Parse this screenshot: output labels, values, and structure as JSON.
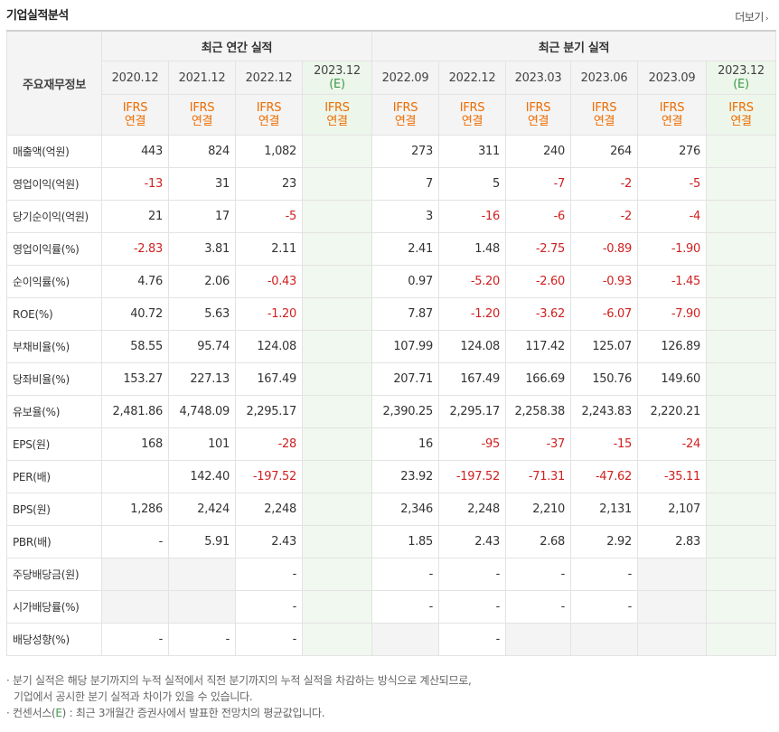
{
  "header": {
    "title": "기업실적분석",
    "more_label": "더보기",
    "more_arrow": "›"
  },
  "table": {
    "rowhead_label": "주요재무정보",
    "group_annual": "최근 연간 실적",
    "group_quarter": "최근 분기 실적",
    "periods": [
      {
        "label": "2020.12",
        "sub": "",
        "basis1": "IFRS",
        "basis2": "연결",
        "estimate": false
      },
      {
        "label": "2021.12",
        "sub": "",
        "basis1": "IFRS",
        "basis2": "연결",
        "estimate": false
      },
      {
        "label": "2022.12",
        "sub": "",
        "basis1": "IFRS",
        "basis2": "연결",
        "estimate": false
      },
      {
        "label": "2023.12",
        "sub": "(E)",
        "basis1": "IFRS",
        "basis2": "연결",
        "estimate": true
      },
      {
        "label": "2022.09",
        "sub": "",
        "basis1": "IFRS",
        "basis2": "연결",
        "estimate": false
      },
      {
        "label": "2022.12",
        "sub": "",
        "basis1": "IFRS",
        "basis2": "연결",
        "estimate": false
      },
      {
        "label": "2023.03",
        "sub": "",
        "basis1": "IFRS",
        "basis2": "연결",
        "estimate": false
      },
      {
        "label": "2023.06",
        "sub": "",
        "basis1": "IFRS",
        "basis2": "연결",
        "estimate": false
      },
      {
        "label": "2023.09",
        "sub": "",
        "basis1": "IFRS",
        "basis2": "연결",
        "estimate": false
      },
      {
        "label": "2023.12",
        "sub": "(E)",
        "basis1": "IFRS",
        "basis2": "연결",
        "estimate": true
      }
    ],
    "rows": [
      {
        "label": "매출액(억원)",
        "values": [
          "443",
          "824",
          "1,082",
          "",
          "273",
          "311",
          "240",
          "264",
          "276",
          ""
        ]
      },
      {
        "label": "영업이익(억원)",
        "values": [
          "-13",
          "31",
          "23",
          "",
          "7",
          "5",
          "-7",
          "-2",
          "-5",
          ""
        ]
      },
      {
        "label": "당기순이익(억원)",
        "values": [
          "21",
          "17",
          "-5",
          "",
          "3",
          "-16",
          "-6",
          "-2",
          "-4",
          ""
        ]
      },
      {
        "label": "영업이익률(%)",
        "values": [
          "-2.83",
          "3.81",
          "2.11",
          "",
          "2.41",
          "1.48",
          "-2.75",
          "-0.89",
          "-1.90",
          ""
        ]
      },
      {
        "label": "순이익률(%)",
        "values": [
          "4.76",
          "2.06",
          "-0.43",
          "",
          "0.97",
          "-5.20",
          "-2.60",
          "-0.93",
          "-1.45",
          ""
        ]
      },
      {
        "label": "ROE(%)",
        "values": [
          "40.72",
          "5.63",
          "-1.20",
          "",
          "7.87",
          "-1.20",
          "-3.62",
          "-6.07",
          "-7.90",
          ""
        ]
      },
      {
        "label": "부채비율(%)",
        "values": [
          "58.55",
          "95.74",
          "124.08",
          "",
          "107.99",
          "124.08",
          "117.42",
          "125.07",
          "126.89",
          ""
        ]
      },
      {
        "label": "당좌비율(%)",
        "values": [
          "153.27",
          "227.13",
          "167.49",
          "",
          "207.71",
          "167.49",
          "166.69",
          "150.76",
          "149.60",
          ""
        ]
      },
      {
        "label": "유보율(%)",
        "values": [
          "2,481.86",
          "4,748.09",
          "2,295.17",
          "",
          "2,390.25",
          "2,295.17",
          "2,258.38",
          "2,243.83",
          "2,220.21",
          ""
        ]
      },
      {
        "label": "EPS(원)",
        "values": [
          "168",
          "101",
          "-28",
          "",
          "16",
          "-95",
          "-37",
          "-15",
          "-24",
          ""
        ]
      },
      {
        "label": "PER(배)",
        "values": [
          "",
          "142.40",
          "-197.52",
          "",
          "23.92",
          "-197.52",
          "-71.31",
          "-47.62",
          "-35.11",
          ""
        ]
      },
      {
        "label": "BPS(원)",
        "values": [
          "1,286",
          "2,424",
          "2,248",
          "",
          "2,346",
          "2,248",
          "2,210",
          "2,131",
          "2,107",
          ""
        ]
      },
      {
        "label": "PBR(배)",
        "values": [
          "-",
          "5.91",
          "2.43",
          "",
          "1.85",
          "2.43",
          "2.68",
          "2.92",
          "2.83",
          ""
        ]
      },
      {
        "label": "주당배당금(원)",
        "values": [
          "",
          "",
          "-",
          "",
          "-",
          "-",
          "-",
          "-",
          "",
          ""
        ]
      },
      {
        "label": "시가배당률(%)",
        "values": [
          "",
          "",
          "-",
          "",
          "-",
          "-",
          "-",
          "-",
          "",
          ""
        ]
      },
      {
        "label": "배당성향(%)",
        "values": [
          "-",
          "-",
          "-",
          "",
          "",
          "-",
          "",
          "",
          "",
          ""
        ]
      }
    ],
    "blank_cells": [
      [
        13,
        0
      ],
      [
        13,
        1
      ],
      [
        13,
        8
      ],
      [
        14,
        0
      ],
      [
        14,
        1
      ],
      [
        14,
        8
      ],
      [
        15,
        4
      ],
      [
        15,
        6
      ],
      [
        15,
        7
      ],
      [
        15,
        8
      ]
    ],
    "group_starts": [
      0,
      3,
      6,
      9,
      13
    ]
  },
  "notes": {
    "line1": "분기 실적은 해당 분기까지의 누적 실적에서 직전 분기까지의 누적 실적을 차감하는 방식으로 계산되므로,",
    "line2": "기업에서 공시한 분기 실적과 차이가 있을 수 있습니다.",
    "line3_a": "컨센서스(",
    "line3_e": "E",
    "line3_b": ") : 최근 3개월간 증권사에서 발표한 전망치의 평균값입니다.",
    "bullet": "·"
  }
}
